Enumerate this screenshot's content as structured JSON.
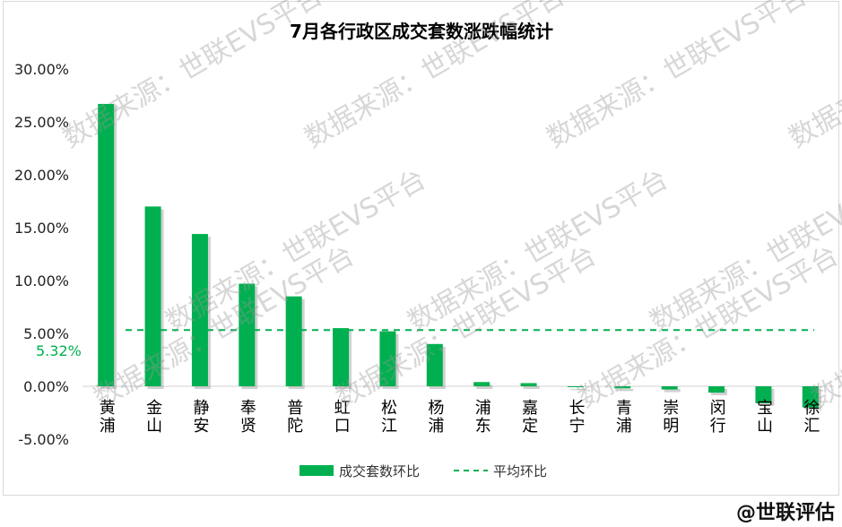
{
  "chart_data": {
    "type": "bar",
    "title": "7月各行政区成交套数涨跌幅统计",
    "categories": [
      "黄浦",
      "金山",
      "静安",
      "奉贤",
      "普陀",
      "虹口",
      "松江",
      "杨浦",
      "浦东",
      "嘉定",
      "长宁",
      "青浦",
      "崇明",
      "闵行",
      "宝山",
      "徐汇"
    ],
    "series": [
      {
        "name": "成交套数环比",
        "values": [
          26.7,
          17.0,
          14.4,
          9.7,
          8.5,
          5.5,
          5.2,
          4.0,
          0.4,
          0.3,
          0.0,
          -0.2,
          -0.3,
          -0.6,
          -1.6,
          -2.0
        ],
        "color": "#00b050"
      }
    ],
    "average": {
      "name": "平均环比",
      "value": 5.32,
      "label": "5.32%",
      "color": "#00b050"
    },
    "ylim": [
      -5,
      30
    ],
    "yticks": [
      "-5.00%",
      "0.00%",
      "5.00%",
      "10.00%",
      "15.00%",
      "20.00%",
      "25.00%",
      "30.00%"
    ],
    "ytick_values": [
      -5,
      0,
      5,
      10,
      15,
      20,
      25,
      30
    ],
    "legend_position": "bottom",
    "grid": false
  },
  "watermarks": [
    "数据来源：世联EVS平台"
  ],
  "credit": "@世联评估"
}
